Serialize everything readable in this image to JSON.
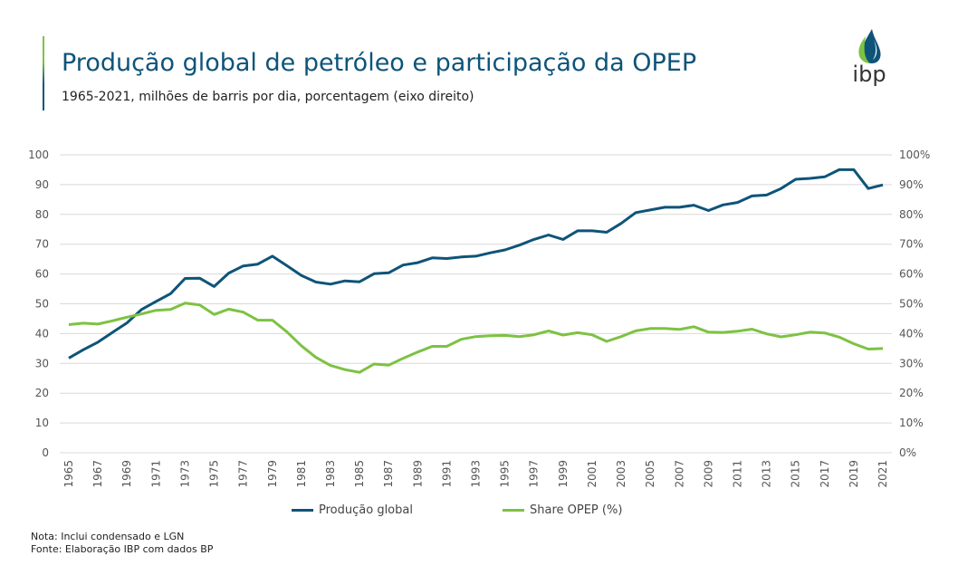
{
  "header": {
    "title": "Produção global de petróleo e participação da OPEP",
    "subtitle": "1965-2021, milhões de barris por dia, porcentagem (eixo direito)",
    "logo_text": "ibp"
  },
  "colors": {
    "production": "#0e5479",
    "share": "#7dc242",
    "grid": "#d9d9d9",
    "title": "#0e5479"
  },
  "chart_data": {
    "type": "line",
    "title": "Produção global de petróleo e participação da OPEP",
    "x": [
      1965,
      1966,
      1967,
      1968,
      1969,
      1970,
      1971,
      1972,
      1973,
      1974,
      1975,
      1976,
      1977,
      1978,
      1979,
      1980,
      1981,
      1982,
      1983,
      1984,
      1985,
      1986,
      1987,
      1988,
      1989,
      1990,
      1991,
      1992,
      1993,
      1994,
      1995,
      1996,
      1997,
      1998,
      1999,
      2000,
      2001,
      2002,
      2003,
      2004,
      2005,
      2006,
      2007,
      2008,
      2009,
      2010,
      2011,
      2012,
      2013,
      2014,
      2015,
      2016,
      2017,
      2018,
      2019,
      2020,
      2021
    ],
    "x_tick_labels": [
      "1965",
      "1967",
      "1969",
      "1971",
      "1973",
      "1975",
      "1977",
      "1979",
      "1981",
      "1983",
      "1985",
      "1987",
      "1989",
      "1991",
      "1993",
      "1995",
      "1997",
      "1999",
      "2001",
      "2003",
      "2005",
      "2007",
      "2009",
      "2011",
      "2013",
      "2015",
      "2017",
      "2019",
      "2021"
    ],
    "y_left": {
      "lim": [
        0,
        100
      ],
      "ticks": [
        "0",
        "10",
        "20",
        "30",
        "40",
        "50",
        "60",
        "70",
        "80",
        "90",
        "100"
      ]
    },
    "y_right": {
      "lim": [
        0,
        100
      ],
      "ticks": [
        "0%",
        "10%",
        "20%",
        "30%",
        "40%",
        "50%",
        "60%",
        "70%",
        "80%",
        "90%",
        "100%"
      ]
    },
    "grid": true,
    "legend_position": "bottom",
    "series": [
      {
        "name": "Produção global",
        "axis": "left",
        "values": [
          31.8,
          34.6,
          37.1,
          40.4,
          43.6,
          48.1,
          50.8,
          53.4,
          58.5,
          58.6,
          55.8,
          60.3,
          62.7,
          63.3,
          66.0,
          62.8,
          59.5,
          57.3,
          56.6,
          57.7,
          57.4,
          60.1,
          60.4,
          63.0,
          63.8,
          65.4,
          65.2,
          65.7,
          66.0,
          67.1,
          68.1,
          69.7,
          71.6,
          73.1,
          71.6,
          74.5,
          74.5,
          74.0,
          77.0,
          80.6,
          81.5,
          82.4,
          82.4,
          83.1,
          81.3,
          83.2,
          84.0,
          86.2,
          86.5,
          88.7,
          91.8,
          92.1,
          92.6,
          95.0,
          95.0,
          88.7,
          89.9
        ]
      },
      {
        "name": "Share OPEP (%)",
        "axis": "right",
        "values": [
          43.0,
          43.5,
          43.2,
          44.3,
          45.5,
          46.6,
          47.8,
          48.1,
          50.2,
          49.6,
          46.4,
          48.2,
          47.2,
          44.5,
          44.5,
          40.6,
          35.9,
          32.0,
          29.3,
          27.9,
          27.0,
          29.8,
          29.4,
          31.7,
          33.8,
          35.7,
          35.7,
          38.1,
          39.0,
          39.3,
          39.4,
          39.0,
          39.6,
          40.9,
          39.5,
          40.3,
          39.6,
          37.4,
          39.0,
          40.9,
          41.7,
          41.7,
          41.4,
          42.3,
          40.5,
          40.4,
          40.8,
          41.5,
          39.9,
          38.9,
          39.6,
          40.5,
          40.2,
          38.8,
          36.6,
          34.8,
          35.0
        ]
      }
    ]
  },
  "notes": {
    "note": "Nota: Inclui condensado e LGN",
    "source": "Fonte: Elaboração IBP com dados BP"
  }
}
